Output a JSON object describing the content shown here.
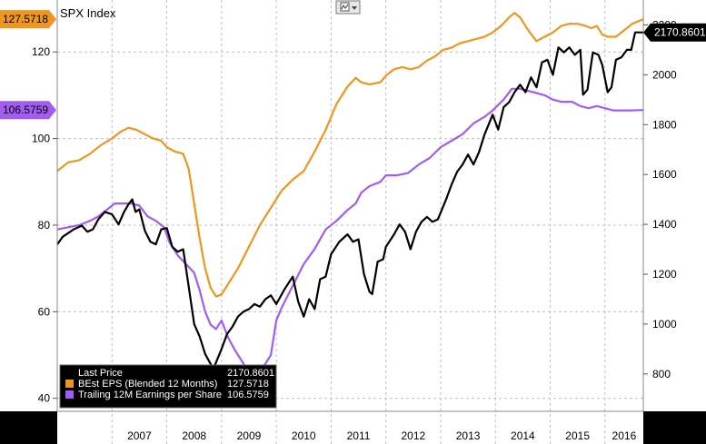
{
  "chart_data": {
    "type": "line",
    "title": "SPX Index",
    "x_ticks": [
      "2007",
      "2008",
      "2009",
      "2010",
      "2011",
      "2012",
      "2013",
      "2014",
      "2015",
      "2016"
    ],
    "left_axis": {
      "ylim": [
        37,
        132
      ],
      "ticks": [
        40,
        60,
        80,
        100,
        120
      ]
    },
    "right_axis": {
      "ylim": [
        650,
        2300
      ],
      "ticks": [
        800,
        1000,
        1200,
        1400,
        1600,
        1800,
        2000,
        2200
      ]
    },
    "grid": true,
    "legend_placement": "bottom-left",
    "series": [
      {
        "name": "Last Price",
        "axis": "right",
        "color": "#000000",
        "last_label": "2170.8601",
        "points": [
          [
            2006.0,
            1320
          ],
          [
            2006.1,
            1350
          ],
          [
            2006.3,
            1380
          ],
          [
            2006.45,
            1395
          ],
          [
            2006.55,
            1370
          ],
          [
            2006.65,
            1380
          ],
          [
            2006.75,
            1420
          ],
          [
            2006.87,
            1450
          ],
          [
            2007.0,
            1440
          ],
          [
            2007.12,
            1400
          ],
          [
            2007.22,
            1450
          ],
          [
            2007.3,
            1480
          ],
          [
            2007.37,
            1500
          ],
          [
            2007.43,
            1450
          ],
          [
            2007.5,
            1460
          ],
          [
            2007.6,
            1375
          ],
          [
            2007.7,
            1330
          ],
          [
            2007.8,
            1320
          ],
          [
            2007.9,
            1380
          ],
          [
            2008.0,
            1385
          ],
          [
            2008.1,
            1310
          ],
          [
            2008.2,
            1290
          ],
          [
            2008.3,
            1300
          ],
          [
            2008.4,
            1150
          ],
          [
            2008.5,
            1000
          ],
          [
            2008.6,
            950
          ],
          [
            2008.7,
            880
          ],
          [
            2008.85,
            820
          ],
          [
            2009.0,
            900
          ],
          [
            2009.1,
            960
          ],
          [
            2009.2,
            990
          ],
          [
            2009.3,
            1030
          ],
          [
            2009.4,
            1050
          ],
          [
            2009.5,
            1060
          ],
          [
            2009.6,
            1080
          ],
          [
            2009.7,
            1070
          ],
          [
            2009.8,
            1100
          ],
          [
            2009.9,
            1115
          ],
          [
            2010.0,
            1080
          ],
          [
            2010.15,
            1140
          ],
          [
            2010.3,
            1190
          ],
          [
            2010.4,
            1090
          ],
          [
            2010.5,
            1030
          ],
          [
            2010.6,
            1100
          ],
          [
            2010.7,
            1060
          ],
          [
            2010.8,
            1180
          ],
          [
            2010.9,
            1190
          ],
          [
            2011.0,
            1280
          ],
          [
            2011.15,
            1330
          ],
          [
            2011.3,
            1360
          ],
          [
            2011.4,
            1330
          ],
          [
            2011.5,
            1340
          ],
          [
            2011.6,
            1200
          ],
          [
            2011.7,
            1130
          ],
          [
            2011.75,
            1120
          ],
          [
            2011.85,
            1250
          ],
          [
            2011.95,
            1260
          ],
          [
            2012.0,
            1310
          ],
          [
            2012.15,
            1360
          ],
          [
            2012.25,
            1400
          ],
          [
            2012.35,
            1370
          ],
          [
            2012.45,
            1300
          ],
          [
            2012.55,
            1370
          ],
          [
            2012.65,
            1410
          ],
          [
            2012.75,
            1430
          ],
          [
            2012.85,
            1410
          ],
          [
            2012.95,
            1420
          ],
          [
            2013.1,
            1500
          ],
          [
            2013.2,
            1560
          ],
          [
            2013.3,
            1610
          ],
          [
            2013.4,
            1640
          ],
          [
            2013.5,
            1680
          ],
          [
            2013.6,
            1640
          ],
          [
            2013.7,
            1690
          ],
          [
            2013.8,
            1760
          ],
          [
            2013.95,
            1840
          ],
          [
            2014.05,
            1780
          ],
          [
            2014.15,
            1870
          ],
          [
            2014.25,
            1890
          ],
          [
            2014.35,
            1930
          ],
          [
            2014.45,
            1960
          ],
          [
            2014.55,
            1930
          ],
          [
            2014.65,
            1990
          ],
          [
            2014.75,
            1950
          ],
          [
            2014.85,
            2050
          ],
          [
            2014.95,
            2060
          ],
          [
            2015.05,
            2000
          ],
          [
            2015.15,
            2110
          ],
          [
            2015.25,
            2090
          ],
          [
            2015.35,
            2110
          ],
          [
            2015.45,
            2080
          ],
          [
            2015.55,
            2100
          ],
          [
            2015.6,
            1920
          ],
          [
            2015.68,
            1940
          ],
          [
            2015.78,
            2090
          ],
          [
            2015.88,
            2080
          ],
          [
            2015.95,
            2040
          ],
          [
            2016.05,
            1930
          ],
          [
            2016.12,
            1950
          ],
          [
            2016.2,
            2060
          ],
          [
            2016.3,
            2070
          ],
          [
            2016.4,
            2100
          ],
          [
            2016.48,
            2100
          ],
          [
            2016.55,
            2170
          ],
          [
            2016.7,
            2170
          ]
        ]
      },
      {
        "name": "BEst EPS (Blended 12 Months)",
        "axis": "left",
        "color": "#f0961e",
        "last_label": "127.5718",
        "points": [
          [
            2006.0,
            92.5
          ],
          [
            2006.2,
            94.5
          ],
          [
            2006.4,
            95
          ],
          [
            2006.6,
            96.5
          ],
          [
            2006.8,
            98.5
          ],
          [
            2007.0,
            100
          ],
          [
            2007.15,
            101.5
          ],
          [
            2007.3,
            102.5
          ],
          [
            2007.45,
            102
          ],
          [
            2007.6,
            101
          ],
          [
            2007.75,
            100
          ],
          [
            2007.9,
            99.5
          ],
          [
            2008.0,
            98
          ],
          [
            2008.15,
            97
          ],
          [
            2008.3,
            96.5
          ],
          [
            2008.4,
            93
          ],
          [
            2008.5,
            85
          ],
          [
            2008.6,
            77
          ],
          [
            2008.7,
            70
          ],
          [
            2008.8,
            65.5
          ],
          [
            2008.9,
            63.5
          ],
          [
            2009.0,
            64
          ],
          [
            2009.15,
            67
          ],
          [
            2009.3,
            70
          ],
          [
            2009.5,
            75
          ],
          [
            2009.7,
            80
          ],
          [
            2009.9,
            84
          ],
          [
            2010.1,
            88
          ],
          [
            2010.3,
            90.5
          ],
          [
            2010.5,
            92.5
          ],
          [
            2010.7,
            97
          ],
          [
            2010.9,
            102
          ],
          [
            2011.1,
            108
          ],
          [
            2011.3,
            112
          ],
          [
            2011.45,
            114
          ],
          [
            2011.55,
            113
          ],
          [
            2011.7,
            112.5
          ],
          [
            2011.9,
            113
          ],
          [
            2012.0,
            114.5
          ],
          [
            2012.15,
            116
          ],
          [
            2012.3,
            116.5
          ],
          [
            2012.45,
            116
          ],
          [
            2012.6,
            116.5
          ],
          [
            2012.75,
            118
          ],
          [
            2012.9,
            119
          ],
          [
            2013.05,
            120.5
          ],
          [
            2013.2,
            121
          ],
          [
            2013.35,
            122
          ],
          [
            2013.5,
            122.5
          ],
          [
            2013.65,
            123
          ],
          [
            2013.8,
            123.5
          ],
          [
            2013.95,
            124.5
          ],
          [
            2014.1,
            126
          ],
          [
            2014.25,
            128
          ],
          [
            2014.35,
            129
          ],
          [
            2014.45,
            128
          ],
          [
            2014.6,
            125
          ],
          [
            2014.75,
            122.5
          ],
          [
            2014.9,
            123.5
          ],
          [
            2015.05,
            124.5
          ],
          [
            2015.2,
            126
          ],
          [
            2015.35,
            126.5
          ],
          [
            2015.5,
            126.5
          ],
          [
            2015.65,
            126
          ],
          [
            2015.75,
            125.5
          ],
          [
            2015.85,
            126
          ],
          [
            2015.95,
            124
          ],
          [
            2016.05,
            123.5
          ],
          [
            2016.2,
            123.5
          ],
          [
            2016.35,
            125
          ],
          [
            2016.5,
            126.5
          ],
          [
            2016.7,
            127.5718
          ]
        ]
      },
      {
        "name": "Trailing 12M Earnings per Share",
        "axis": "left",
        "color": "#a35cf2",
        "last_label": "106.5759",
        "points": [
          [
            2006.0,
            79
          ],
          [
            2006.2,
            79.5
          ],
          [
            2006.4,
            80
          ],
          [
            2006.6,
            81
          ],
          [
            2006.75,
            82
          ],
          [
            2006.9,
            83.5
          ],
          [
            2007.05,
            85
          ],
          [
            2007.2,
            85
          ],
          [
            2007.35,
            85
          ],
          [
            2007.5,
            84.5
          ],
          [
            2007.65,
            82
          ],
          [
            2007.8,
            81
          ],
          [
            2007.95,
            79.5
          ],
          [
            2008.05,
            76
          ],
          [
            2008.2,
            73
          ],
          [
            2008.35,
            71
          ],
          [
            2008.5,
            69
          ],
          [
            2008.6,
            65
          ],
          [
            2008.7,
            60
          ],
          [
            2008.8,
            57
          ],
          [
            2008.9,
            56
          ],
          [
            2009.0,
            58
          ],
          [
            2009.12,
            54
          ],
          [
            2009.25,
            51
          ],
          [
            2009.4,
            48
          ],
          [
            2009.5,
            45
          ],
          [
            2009.6,
            44.5
          ],
          [
            2009.75,
            47
          ],
          [
            2009.9,
            50
          ],
          [
            2010.0,
            58
          ],
          [
            2010.1,
            61
          ],
          [
            2010.3,
            66
          ],
          [
            2010.5,
            71
          ],
          [
            2010.7,
            74.5
          ],
          [
            2010.9,
            79
          ],
          [
            2011.1,
            81
          ],
          [
            2011.3,
            83.5
          ],
          [
            2011.45,
            85
          ],
          [
            2011.55,
            87.5
          ],
          [
            2011.7,
            89
          ],
          [
            2011.9,
            90
          ],
          [
            2012.0,
            91.5
          ],
          [
            2012.2,
            91.5
          ],
          [
            2012.4,
            92
          ],
          [
            2012.6,
            94
          ],
          [
            2012.8,
            95.5
          ],
          [
            2013.0,
            98
          ],
          [
            2013.2,
            99.5
          ],
          [
            2013.4,
            101
          ],
          [
            2013.6,
            103.5
          ],
          [
            2013.8,
            105
          ],
          [
            2013.95,
            106.5
          ],
          [
            2014.15,
            109
          ],
          [
            2014.3,
            111.5
          ],
          [
            2014.45,
            111.5
          ],
          [
            2014.6,
            111
          ],
          [
            2014.75,
            110.5
          ],
          [
            2014.9,
            110
          ],
          [
            2015.05,
            109
          ],
          [
            2015.2,
            108.5
          ],
          [
            2015.4,
            108.5
          ],
          [
            2015.55,
            107.5
          ],
          [
            2015.7,
            107
          ],
          [
            2015.85,
            107.5
          ],
          [
            2016.0,
            107
          ],
          [
            2016.15,
            106.5
          ],
          [
            2016.3,
            106.5
          ],
          [
            2016.45,
            106.5
          ],
          [
            2016.7,
            106.5759
          ]
        ]
      }
    ]
  },
  "ui": {
    "toolbar_icon": "line-chart-icon"
  }
}
